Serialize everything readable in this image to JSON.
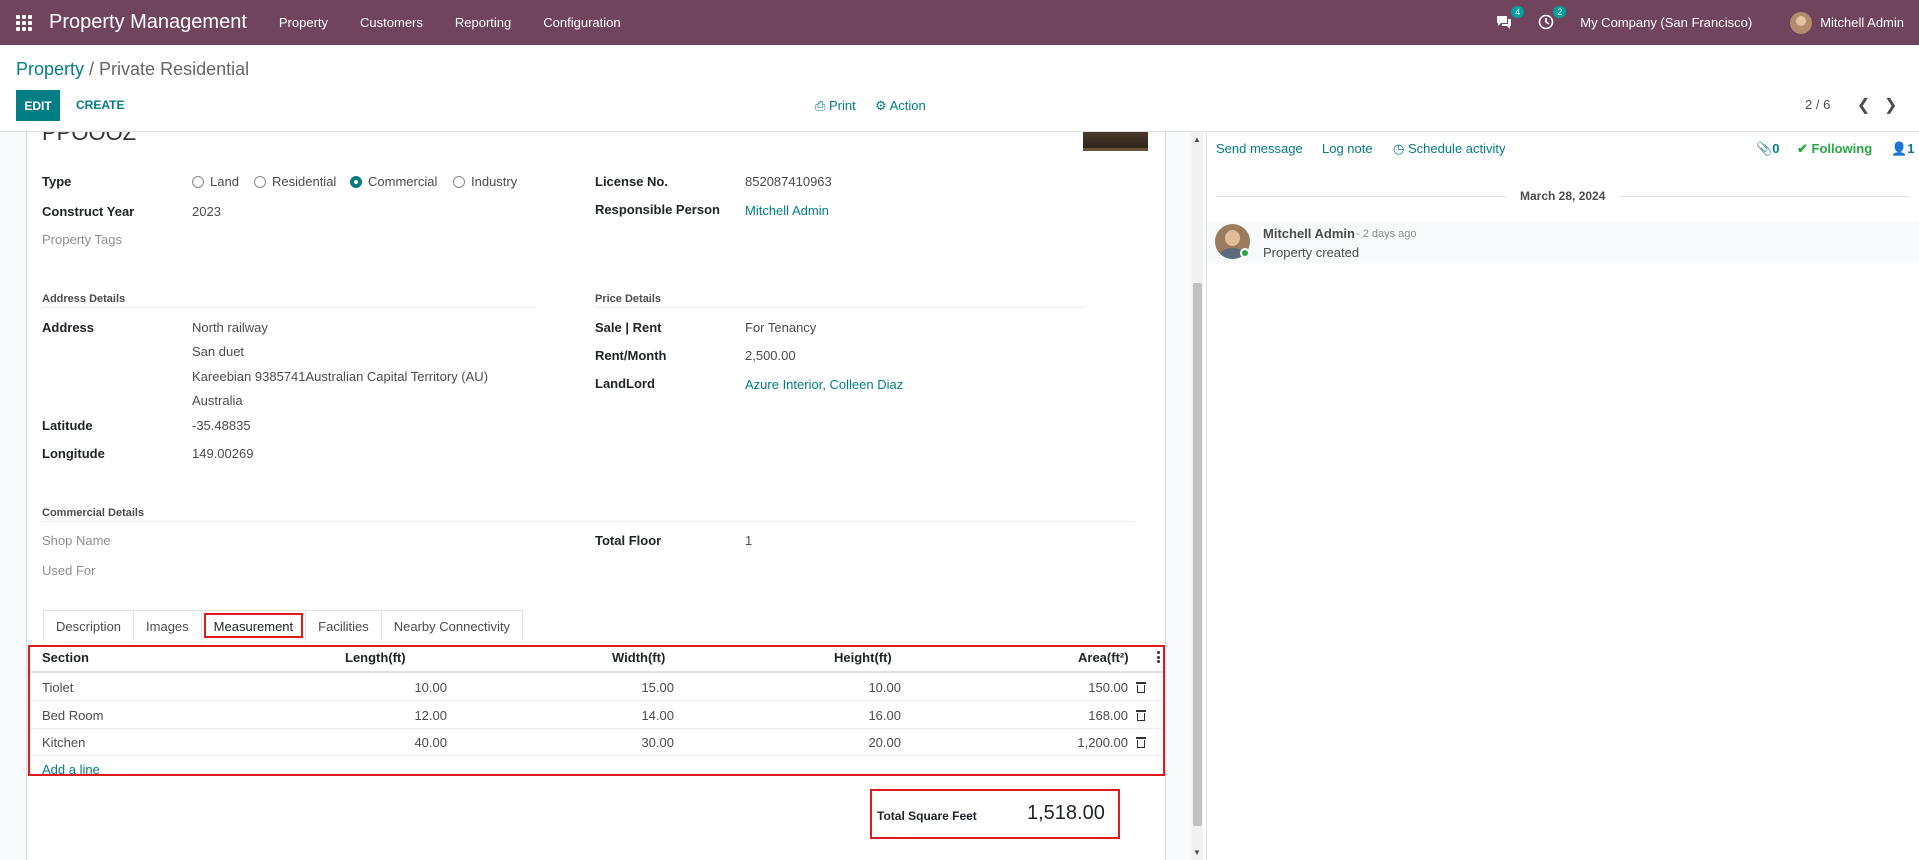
{
  "nav": {
    "brand": "Property Management",
    "menu": [
      "Property",
      "Customers",
      "Reporting",
      "Configuration"
    ],
    "messages_count": "4",
    "activities_count": "2",
    "company": "My Company (San Francisco)",
    "user": "Mitchell Admin"
  },
  "breadcrumb": {
    "parent": "Property",
    "sep": " / ",
    "current": "Private Residential"
  },
  "toolbar": {
    "edit": "EDIT",
    "create": "CREATE",
    "print": "Print",
    "action": "Action",
    "pager": "2 / 6"
  },
  "form": {
    "ref_partial": "PPOOOZ",
    "type_label": "Type",
    "type_options": [
      "Land",
      "Residential",
      "Commercial",
      "Industry"
    ],
    "type_selected": "Commercial",
    "construct_year_label": "Construct Year",
    "construct_year": "2023",
    "property_tags_label": "Property Tags",
    "license_label": "License No.",
    "license": "852087410963",
    "responsible_label": "Responsible Person",
    "responsible": "Mitchell Admin",
    "address_section": "Address Details",
    "address_label": "Address",
    "address_lines": [
      "North railway",
      "San duet",
      "Kareebian  9385741Australian Capital Territory (AU)",
      "Australia"
    ],
    "latitude_label": "Latitude",
    "latitude": "-35.48835",
    "longitude_label": "Longitude",
    "longitude": "149.00269",
    "price_section": "Price Details",
    "sale_rent_label": "Sale | Rent",
    "sale_rent": "For Tenancy",
    "rent_month_label": "Rent/Month",
    "rent_month": "2,500.00",
    "landlord_label": "LandLord",
    "landlord": "Azure Interior, Colleen Diaz",
    "commercial_section": "Commercial Details",
    "shop_name_label": "Shop Name",
    "used_for_label": "Used For",
    "total_floor_label": "Total Floor",
    "total_floor": "1"
  },
  "tabs": [
    "Description",
    "Images",
    "Measurement",
    "Facilities",
    "Nearby Connectivity"
  ],
  "active_tab": "Measurement",
  "table": {
    "headers": [
      "Section",
      "Length(ft)",
      "Width(ft)",
      "Height(ft)",
      "Area(ft²)"
    ],
    "rows": [
      [
        "Tiolet",
        "10.00",
        "15.00",
        "10.00",
        "150.00"
      ],
      [
        "Bed Room",
        "12.00",
        "14.00",
        "16.00",
        "168.00"
      ],
      [
        "Kitchen",
        "40.00",
        "30.00",
        "20.00",
        "1,200.00"
      ]
    ],
    "add_line": "Add a line"
  },
  "total": {
    "label": "Total Square Feet",
    "value": "1,518.00"
  },
  "chatter": {
    "send_message": "Send message",
    "log_note": "Log note",
    "schedule_activity": "Schedule activity",
    "attachments": "0",
    "following": "Following",
    "followers": "1",
    "date": "March 28, 2024",
    "author": "Mitchell Admin",
    "time": "- 2 days ago",
    "body": "Property created"
  },
  "colors": {
    "navbar": "#71445e",
    "primary": "#017e84",
    "highlight": "#e01b1b",
    "following": "#28a745"
  }
}
